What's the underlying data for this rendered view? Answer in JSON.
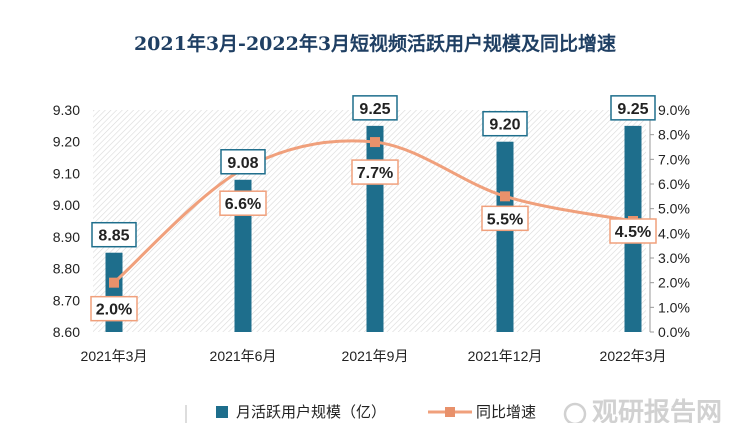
{
  "chart_data": {
    "type": "bar",
    "title": "2021年3月-2022年3月短视频活跃用户规模及同比增速",
    "categories": [
      "2021年3月",
      "2021年6月",
      "2021年9月",
      "2021年12月",
      "2022年3月"
    ],
    "series": [
      {
        "name": "月活跃用户规模（亿）",
        "type": "bar",
        "axis": "left",
        "values": [
          8.85,
          9.08,
          9.25,
          9.2,
          9.25
        ],
        "labels": [
          "8.85",
          "9.08",
          "9.25",
          "9.20",
          "9.25"
        ],
        "color": "#1e6e8c"
      },
      {
        "name": "同比增速",
        "type": "line",
        "axis": "right",
        "values": [
          2.0,
          6.6,
          7.7,
          5.5,
          4.5
        ],
        "labels": [
          "2.0%",
          "6.6%",
          "7.7%",
          "5.5%",
          "4.5%"
        ],
        "color": "#f0a07c"
      }
    ],
    "yleft": {
      "lim": [
        8.6,
        9.3
      ],
      "ticks": [
        "8.60",
        "8.70",
        "8.80",
        "8.90",
        "9.00",
        "9.10",
        "9.20",
        "9.30"
      ]
    },
    "yright": {
      "lim": [
        0,
        9
      ],
      "ticks": [
        "0.0%",
        "1.0%",
        "2.0%",
        "3.0%",
        "4.0%",
        "5.0%",
        "6.0%",
        "7.0%",
        "8.0%",
        "9.0%"
      ]
    },
    "legend_position": "bottom",
    "grid": false
  },
  "watermark": {
    "text": "观研报告网"
  }
}
